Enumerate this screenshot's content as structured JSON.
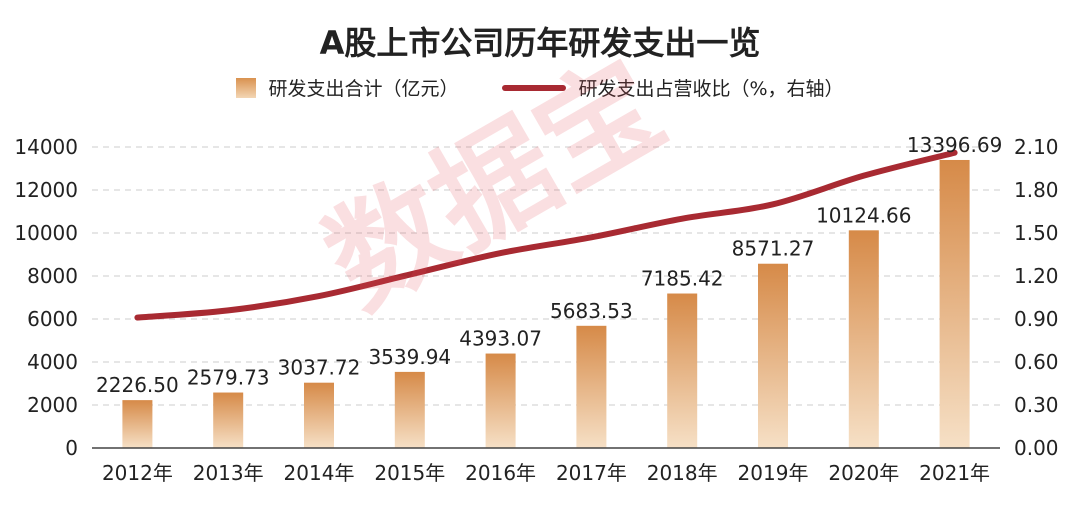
{
  "chart_data": {
    "type": "bar",
    "title": "A股上市公司历年研发支出一览",
    "categories": [
      "2012年",
      "2013年",
      "2014年",
      "2015年",
      "2016年",
      "2017年",
      "2018年",
      "2019年",
      "2020年",
      "2021年"
    ],
    "series": [
      {
        "name": "研发支出合计（亿元）",
        "type": "bar",
        "axis": "left",
        "values": [
          2226.5,
          2579.73,
          3037.72,
          3539.94,
          4393.07,
          5683.53,
          7185.42,
          8571.27,
          10124.66,
          13396.69
        ],
        "labels": [
          "2226.50",
          "2579.73",
          "3037.72",
          "3539.94",
          "4393.07",
          "5683.53",
          "7185.42",
          "8571.27",
          "10124.66",
          "13396.69"
        ]
      },
      {
        "name": "研发支出占营收比（%，右轴）",
        "type": "line",
        "axis": "right",
        "values": [
          0.91,
          0.96,
          1.06,
          1.21,
          1.36,
          1.47,
          1.6,
          1.7,
          1.9,
          2.06
        ]
      }
    ],
    "ylim_left": [
      0,
      14000
    ],
    "yticks_left": [
      "0",
      "2000",
      "4000",
      "6000",
      "8000",
      "10000",
      "12000",
      "14000"
    ],
    "ylim_right": [
      0,
      2.1
    ],
    "yticks_right": [
      "0.00",
      "0.30",
      "0.60",
      "0.90",
      "1.20",
      "1.50",
      "1.80",
      "2.10"
    ],
    "grid": true,
    "legend_position": "top-center",
    "colors": {
      "bar_top": "#d68a48",
      "bar_bottom": "#f6e0c6",
      "line": "#a82a32",
      "grid": "#d6d6d6"
    }
  },
  "watermark": "数据宝"
}
